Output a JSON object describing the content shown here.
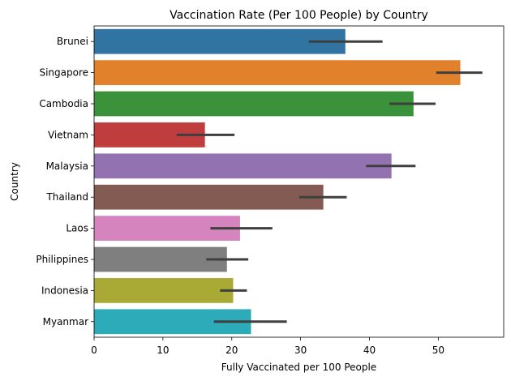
{
  "chart_data": {
    "type": "bar",
    "orientation": "horizontal",
    "title": "Vaccination Rate (Per 100 People) by Country",
    "xlabel": "Fully Vaccinated per 100 People",
    "ylabel": "Country",
    "xlim": [
      0,
      59.5
    ],
    "xticks": [
      0,
      10,
      20,
      30,
      40,
      50
    ],
    "grid": false,
    "legend": "none",
    "categories": [
      "Brunei",
      "Singapore",
      "Cambodia",
      "Vietnam",
      "Malaysia",
      "Thailand",
      "Laos",
      "Philippines",
      "Indonesia",
      "Myanmar"
    ],
    "values": [
      36.5,
      53.2,
      46.4,
      16.1,
      43.2,
      33.3,
      21.2,
      19.3,
      20.2,
      22.8
    ],
    "error_low": [
      31.2,
      49.7,
      42.9,
      12.0,
      39.5,
      29.8,
      16.9,
      16.3,
      18.3,
      17.4
    ],
    "error_high": [
      41.9,
      56.4,
      49.6,
      20.4,
      46.7,
      36.7,
      25.9,
      22.4,
      22.2,
      28.0
    ],
    "colors": [
      "#3274a1",
      "#e1812c",
      "#3a923a",
      "#c03d3e",
      "#9372b2",
      "#845b53",
      "#d684bd",
      "#7f7f7f",
      "#a9aa35",
      "#2eabb8"
    ],
    "error_color": "#3f3f3f"
  }
}
